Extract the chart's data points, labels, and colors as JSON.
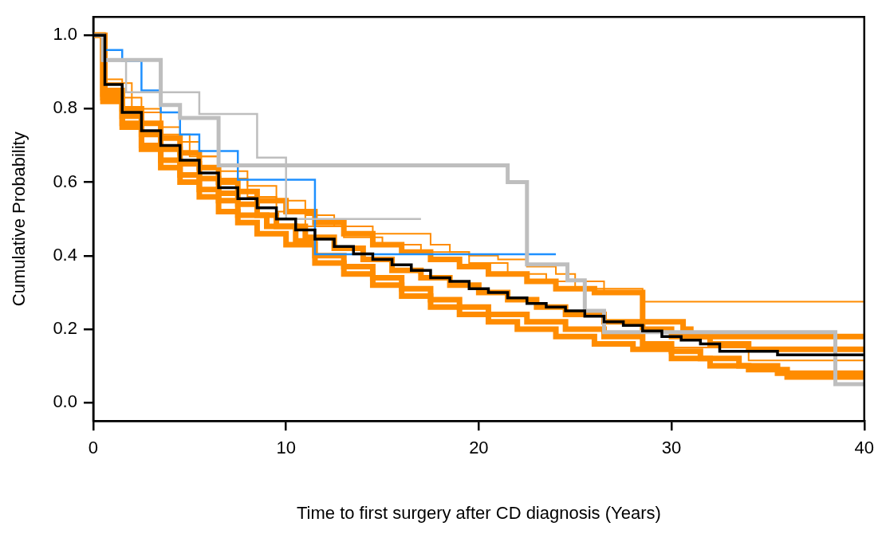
{
  "chart_data": {
    "type": "step",
    "xlabel": "Time to first surgery after CD diagnosis (Years)",
    "ylabel": "Cumulative Probability",
    "xlim": [
      0,
      40
    ],
    "ylim": [
      -0.05,
      1.05
    ],
    "xticks": [
      0,
      10,
      20,
      30,
      40
    ],
    "yticks": [
      {
        "value": 0,
        "label": "0.0"
      },
      {
        "value": 0.2,
        "label": "0.2"
      },
      {
        "value": 0.4,
        "label": "0.4"
      },
      {
        "value": 0.6,
        "label": "0.6"
      },
      {
        "value": 0.8,
        "label": "0.8"
      },
      {
        "value": 1,
        "label": "1.0"
      }
    ],
    "grid": false,
    "legend": false,
    "series": [
      {
        "color": "#ff8c00",
        "x": [
          0,
          0.5,
          1.5,
          2.5,
          3.5,
          4.5,
          5.5,
          6.5,
          8,
          9.5,
          11,
          12.5,
          14.5,
          17.5,
          18.5,
          19.5,
          21,
          22.5,
          24,
          25,
          26.5,
          28.5,
          40
        ],
        "values": [
          1,
          0.88,
          0.83,
          0.79,
          0.75,
          0.71,
          0.67,
          0.63,
          0.59,
          0.55,
          0.51,
          0.48,
          0.46,
          0.43,
          0.41,
          0.4,
          0.39,
          0.37,
          0.35,
          0.33,
          0.3,
          0.275,
          0.275
        ]
      },
      {
        "color": "#ff8c00",
        "x": [
          0,
          0.6,
          1.5,
          2.5,
          3.5,
          4.5,
          5.5,
          6.5,
          7.5,
          8.5,
          10,
          11.5,
          13,
          14.5,
          16,
          17.5,
          19,
          20.5,
          22.5,
          24,
          26,
          28.5,
          30.6,
          31,
          40
        ],
        "values": [
          1,
          0.85,
          0.8,
          0.76,
          0.72,
          0.68,
          0.64,
          0.6,
          0.575,
          0.55,
          0.52,
          0.49,
          0.46,
          0.43,
          0.41,
          0.39,
          0.37,
          0.35,
          0.33,
          0.31,
          0.3,
          0.22,
          0.2,
          0.18,
          0.18
        ]
      },
      {
        "color": "#ff8c00",
        "x": [
          0,
          0.5,
          2,
          3.5,
          5,
          6.5,
          8,
          9.5,
          11,
          13,
          15,
          17,
          19.5,
          21.5,
          23.5,
          25,
          28.5,
          34,
          40
        ],
        "values": [
          1,
          0.87,
          0.8,
          0.73,
          0.67,
          0.61,
          0.56,
          0.52,
          0.48,
          0.45,
          0.43,
          0.41,
          0.38,
          0.35,
          0.33,
          0.31,
          0.15,
          0.115,
          0.115
        ]
      },
      {
        "color": "#ff8c00",
        "x": [
          0,
          0.5,
          1.5,
          2.5,
          3.5,
          4.5,
          5.5,
          6.5,
          7.5,
          8.5,
          9.5,
          11,
          12.5,
          14,
          15.5,
          17,
          18.5,
          20,
          21.5,
          23,
          24.5,
          26.5,
          28.5,
          30,
          32,
          34,
          40
        ],
        "values": [
          1,
          0.84,
          0.78,
          0.73,
          0.69,
          0.65,
          0.61,
          0.57,
          0.54,
          0.51,
          0.48,
          0.45,
          0.42,
          0.39,
          0.36,
          0.34,
          0.32,
          0.3,
          0.28,
          0.26,
          0.24,
          0.22,
          0.2,
          0.18,
          0.16,
          0.145,
          0.14
        ]
      },
      {
        "color": "#ff8c00",
        "x": [
          0,
          0.5,
          1.5,
          2.5,
          3.5,
          4.5,
          5.5,
          6.5,
          7.5,
          9,
          10.5,
          11.5,
          13,
          14.5,
          16,
          17.5,
          19,
          20.5,
          22.5,
          24.5,
          26.5,
          28.5,
          30,
          31.5,
          33.5,
          35.5,
          40
        ],
        "values": [
          1,
          0.83,
          0.76,
          0.7,
          0.66,
          0.62,
          0.58,
          0.55,
          0.51,
          0.48,
          0.44,
          0.4,
          0.37,
          0.34,
          0.31,
          0.28,
          0.26,
          0.24,
          0.22,
          0.2,
          0.18,
          0.16,
          0.14,
          0.12,
          0.1,
          0.08,
          0.08
        ]
      },
      {
        "color": "#ff8c00",
        "x": [
          0,
          0.5,
          1.5,
          2.5,
          3.5,
          4.5,
          5.5,
          6.5,
          7.5,
          8.5,
          10,
          11.5,
          13,
          14.5,
          16,
          17.5,
          19,
          20.5,
          22,
          24,
          26,
          28,
          30,
          32,
          34,
          36,
          40
        ],
        "values": [
          1,
          0.82,
          0.75,
          0.69,
          0.64,
          0.6,
          0.56,
          0.52,
          0.49,
          0.46,
          0.43,
          0.38,
          0.35,
          0.32,
          0.29,
          0.26,
          0.24,
          0.22,
          0.2,
          0.18,
          0.16,
          0.145,
          0.12,
          0.1,
          0.09,
          0.07,
          0.07
        ]
      },
      {
        "color": "#1e90ff",
        "x": [
          0.5,
          1.5,
          2.5,
          3.5,
          4.5,
          5.5,
          7.5,
          11.5,
          24
        ],
        "values": [
          0.96,
          0.93,
          0.85,
          0.79,
          0.73,
          0.685,
          0.607,
          0.404,
          0.404
        ]
      },
      {
        "color": "#bebebe",
        "x": [
          0,
          0.5,
          1.7,
          5.5,
          8.5,
          10,
          17
        ],
        "values": [
          1,
          0.93,
          0.845,
          0.786,
          0.667,
          0.5,
          0.5
        ]
      },
      {
        "color": "#bebebe",
        "x": [
          0,
          0.5,
          3.5,
          4.5,
          6.5,
          21.5,
          22.5,
          24.6,
          25.5,
          26.5,
          38.5,
          40
        ],
        "values": [
          1,
          0.933,
          0.81,
          0.775,
          0.646,
          0.6,
          0.376,
          0.333,
          0.25,
          0.192,
          0.05,
          0.05
        ]
      },
      {
        "color": "#000000",
        "x": [
          0,
          0.6,
          1.5,
          2.5,
          3.5,
          4.5,
          5.5,
          6.5,
          7.5,
          8.5,
          9.5,
          10.5,
          11.5,
          12.5,
          13.5,
          14.5,
          15.5,
          16.5,
          17.5,
          18.5,
          19.5,
          20.5,
          21.5,
          22.5,
          23.5,
          24.5,
          25.5,
          26.5,
          27.5,
          28.5,
          29.5,
          30.5,
          31.5,
          32.5,
          35.5,
          40
        ],
        "values": [
          1,
          0.866,
          0.79,
          0.74,
          0.7,
          0.66,
          0.625,
          0.585,
          0.555,
          0.53,
          0.5,
          0.47,
          0.445,
          0.425,
          0.405,
          0.39,
          0.375,
          0.36,
          0.34,
          0.33,
          0.31,
          0.3,
          0.285,
          0.27,
          0.26,
          0.25,
          0.235,
          0.22,
          0.21,
          0.195,
          0.18,
          0.17,
          0.16,
          0.14,
          0.13,
          0.13
        ]
      }
    ]
  }
}
